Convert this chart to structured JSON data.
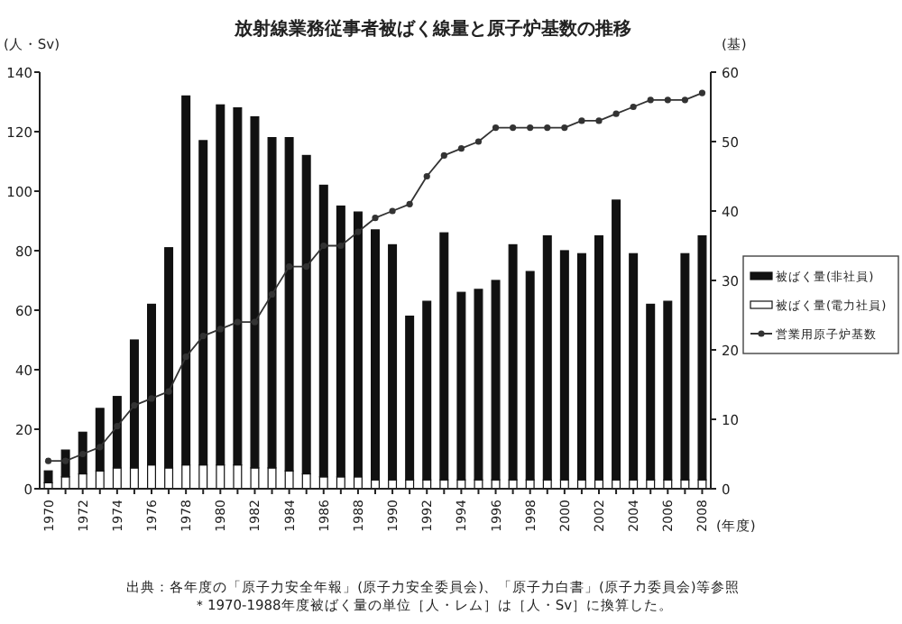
{
  "chart_data": {
    "type": "bar",
    "title": "放射線業務従事者被ばく線量と原子炉基数の推移",
    "ylabel": "(人・Sv)",
    "y2label": "(基)",
    "xlabel": "(年度)",
    "categories": [
      "1970",
      null,
      "1972",
      null,
      "1974",
      null,
      "1976",
      null,
      "1978",
      null,
      "1980",
      null,
      "1982",
      null,
      "1984",
      null,
      "1986",
      null,
      "1988",
      null,
      "1990",
      null,
      "1992",
      null,
      "1994",
      null,
      "1996",
      null,
      "1998",
      null,
      "2000",
      null,
      "2002",
      null,
      "2004",
      null,
      "2006",
      null,
      "2008"
    ],
    "stacked": true,
    "ylim": [
      0,
      140
    ],
    "yticks": [
      0,
      20,
      40,
      60,
      80,
      100,
      120,
      140
    ],
    "y2lim": [
      0,
      60
    ],
    "y2ticks": [
      0,
      10,
      20,
      30,
      40,
      50,
      60
    ],
    "legend": "right",
    "series": [
      {
        "name": "被ばく量(電力社員)",
        "color": "#ffffff",
        "values": [
          2,
          4,
          5,
          6,
          7,
          7,
          8,
          7,
          8,
          8,
          8,
          8,
          7,
          7,
          6,
          5,
          4,
          4,
          4,
          3,
          3,
          3,
          3,
          3,
          3,
          3,
          3,
          3,
          3,
          3,
          3,
          3,
          3,
          3,
          3,
          3,
          3,
          3,
          3
        ]
      },
      {
        "name": "被ばく量(非社員)",
        "color": "#111111",
        "values": [
          4,
          9,
          14,
          21,
          24,
          43,
          54,
          74,
          124,
          109,
          121,
          120,
          118,
          111,
          112,
          107,
          98,
          91,
          89,
          84,
          79,
          55,
          60,
          83,
          63,
          64,
          67,
          79,
          70,
          82,
          77,
          76,
          82,
          94,
          76,
          59,
          60,
          76,
          82
        ]
      },
      {
        "name": "営業用原子炉基数",
        "type": "line",
        "axis": "y2",
        "color": "#333333",
        "marker": "circle",
        "values": [
          4,
          4,
          5,
          6,
          9,
          12,
          13,
          14,
          19,
          22,
          23,
          24,
          24,
          28,
          32,
          32,
          35,
          35,
          37,
          39,
          40,
          41,
          45,
          48,
          49,
          50,
          52,
          52,
          52,
          52,
          52,
          53,
          53,
          54,
          55,
          56,
          56,
          56,
          57
        ]
      }
    ],
    "annotations": [
      "出典：各年度の「原子力安全年報」(原子力安全委員会)、「原子力白書」(原子力委員会)等参照",
      "＊1970-1988年度被ばく量の単位［人・レム］は［人・Sv］に換算した。"
    ]
  }
}
